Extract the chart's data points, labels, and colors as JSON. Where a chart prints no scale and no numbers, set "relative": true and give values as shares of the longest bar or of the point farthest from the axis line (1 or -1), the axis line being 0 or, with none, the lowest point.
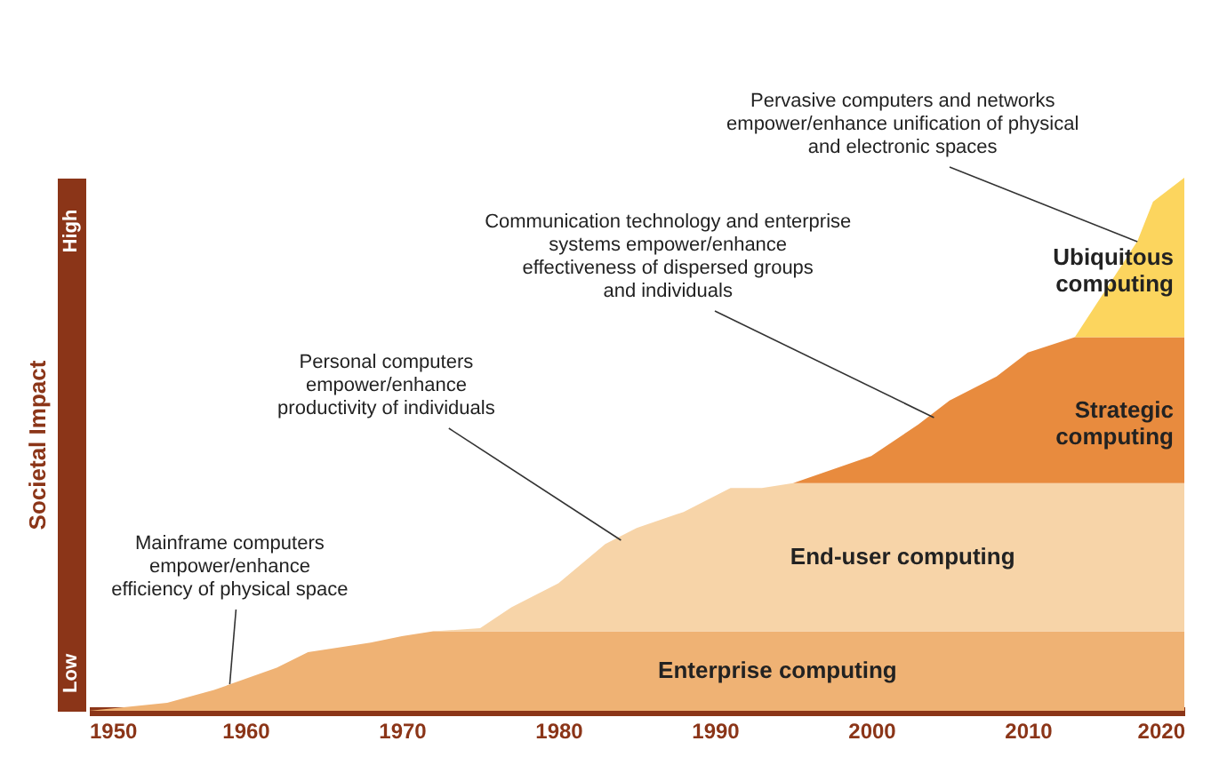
{
  "chart_data": {
    "type": "area",
    "stacked": true,
    "relative": true,
    "legend": false,
    "grid": false,
    "ylabel": "Societal Impact",
    "x": [
      1950,
      1955,
      1958,
      1960,
      1962,
      1964,
      1968,
      1970,
      1972,
      1975,
      1977,
      1980,
      1983,
      1985,
      1988,
      1990,
      1991,
      1993,
      1995,
      2000,
      2003,
      2005,
      2008,
      2010,
      2013,
      2015,
      2017,
      2018,
      2020
    ],
    "xlim": [
      1950,
      2020
    ],
    "xticks": [
      1950,
      1960,
      1970,
      1980,
      1990,
      2000,
      2010,
      2020
    ],
    "series": [
      {
        "name": "Enterprise computing",
        "color": "#efb274",
        "values": [
          0,
          0.015,
          0.039,
          0.06,
          0.081,
          0.11,
          0.128,
          0.14,
          0.149,
          0.149,
          0.149,
          0.149,
          0.149,
          0.149,
          0.149,
          0.149,
          0.149,
          0.149,
          0.149,
          0.149,
          0.149,
          0.149,
          0.149,
          0.149,
          0.149,
          0.149,
          0.149,
          0.149,
          0.149
        ]
      },
      {
        "name": "End-user computing",
        "color": "#f7d4a8",
        "values": [
          0,
          0,
          0,
          0,
          0,
          0,
          0,
          0,
          0,
          0.006,
          0.045,
          0.09,
          0.164,
          0.194,
          0.224,
          0.254,
          0.269,
          0.269,
          0.278,
          0.278,
          0.278,
          0.278,
          0.278,
          0.278,
          0.278,
          0.278,
          0.278,
          0.278,
          0.278
        ]
      },
      {
        "name": "Strategic computing",
        "color": "#e88b3e",
        "values": [
          0,
          0,
          0,
          0,
          0,
          0,
          0,
          0,
          0,
          0,
          0,
          0,
          0,
          0,
          0,
          0,
          0,
          0,
          0,
          0.051,
          0.11,
          0.155,
          0.2,
          0.245,
          0.274,
          0.274,
          0.274,
          0.274,
          0.274
        ]
      },
      {
        "name": "Ubiquitous computing",
        "color": "#fcd55e",
        "values": [
          0,
          0,
          0,
          0,
          0,
          0,
          0,
          0,
          0,
          0,
          0,
          0,
          0,
          0,
          0,
          0,
          0,
          0,
          0,
          0,
          0,
          0,
          0,
          0,
          0,
          0.09,
          0.18,
          0.254,
          0.299
        ]
      }
    ],
    "annotations": [
      {
        "text": "Mainframe computers\nempower/enhance\nefficiency of physical space",
        "x": 1959,
        "y": 0.05
      },
      {
        "text": "Personal computers\nempower/enhance\nproductivity of individuals",
        "x": 1984,
        "y": 0.32
      },
      {
        "text": "Communication technology and enterprise\nsystems empower/enhance\neffectiveness of dispersed groups\nand individuals",
        "x": 2004,
        "y": 0.55
      },
      {
        "text": "Pervasive computers and networks\nempower/enhance unification of physical\nand electronic spaces",
        "x": 2017,
        "y": 0.88
      },
      "Low",
      "High"
    ]
  }
}
